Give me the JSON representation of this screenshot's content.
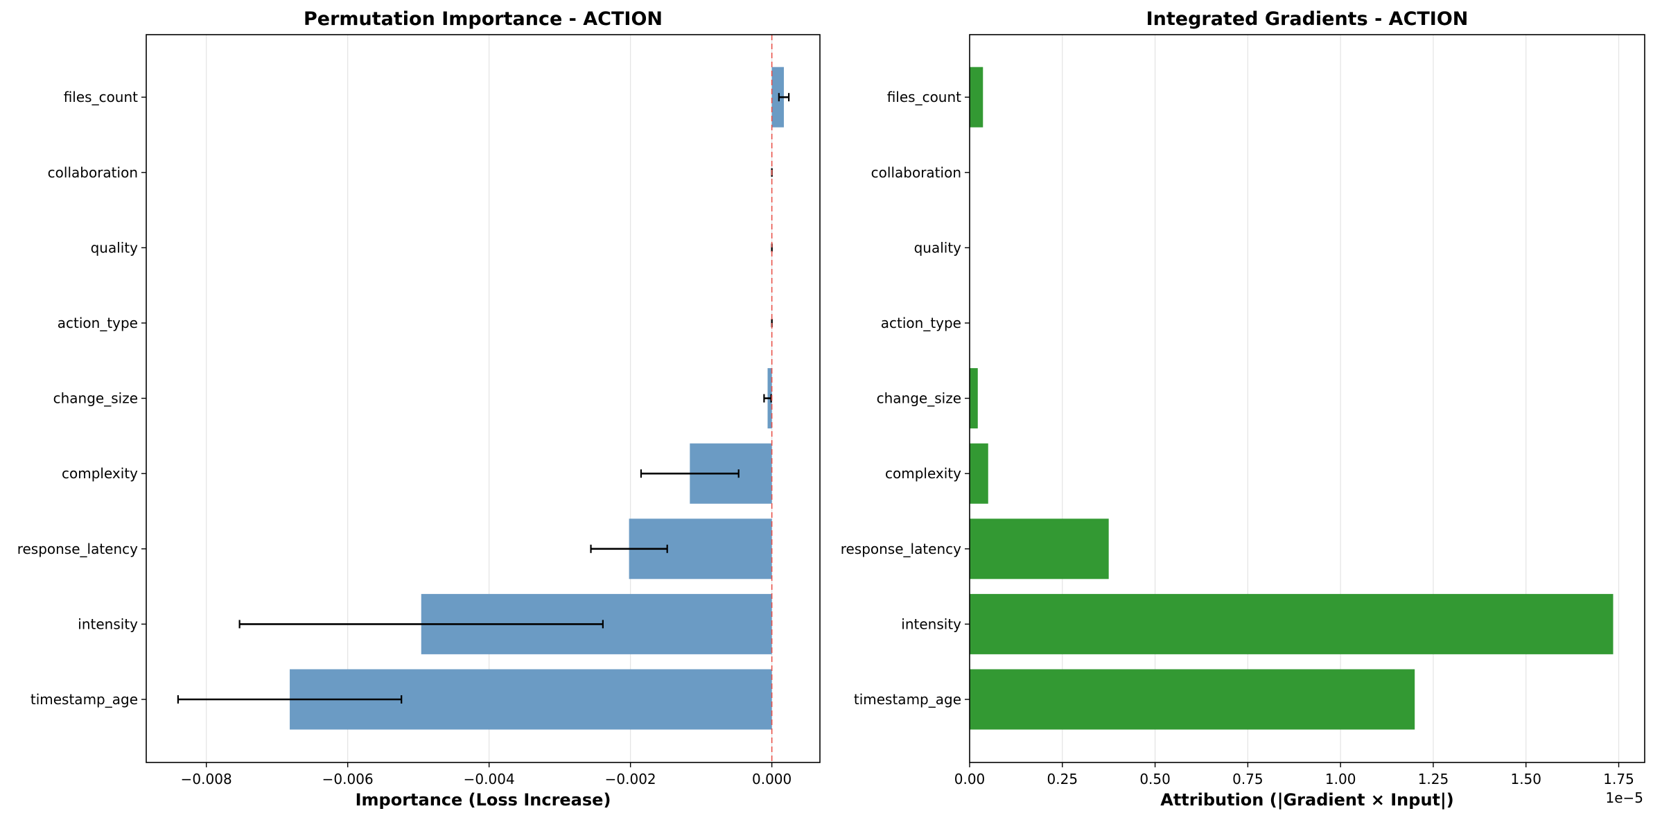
{
  "chart_data": [
    {
      "type": "bar",
      "orientation": "horizontal",
      "title": "Permutation Importance - ACTION",
      "xlabel": "Importance (Loss Increase)",
      "categories": [
        "timestamp_age",
        "intensity",
        "response_latency",
        "complexity",
        "change_size",
        "action_type",
        "quality",
        "collaboration",
        "files_count"
      ],
      "values": [
        -0.00682,
        -0.00496,
        -0.00202,
        -0.00116,
        -6e-05,
        0.0,
        0.0,
        0.0,
        0.00017
      ],
      "errors": [
        0.00158,
        0.00257,
        0.00054,
        0.00069,
        5e-05,
        0.0,
        0.0,
        0.0,
        7e-05
      ],
      "xlim": [
        -0.00885,
        0.00068
      ],
      "xticks": [
        -0.008,
        -0.006,
        -0.004,
        -0.002,
        0.0
      ],
      "xtick_labels": [
        "−0.008",
        "−0.006",
        "−0.004",
        "−0.002",
        "0.000"
      ],
      "grid": "x",
      "bar_color": "#6b9bc4",
      "zero_line_color": "#e8524a"
    },
    {
      "type": "bar",
      "orientation": "horizontal",
      "title": "Integrated Gradients - ACTION",
      "xlabel": "Attribution (|Gradient × Input|)",
      "categories": [
        "timestamp_age",
        "intensity",
        "response_latency",
        "complexity",
        "change_size",
        "action_type",
        "quality",
        "collaboration",
        "files_count"
      ],
      "values": [
        1.2,
        1.735,
        0.375,
        0.05,
        0.022,
        0.0,
        0.0,
        0.0,
        0.036
      ],
      "xlim": [
        0.0,
        1.82
      ],
      "xticks": [
        0.0,
        0.25,
        0.5,
        0.75,
        1.0,
        1.25,
        1.5,
        1.75
      ],
      "xtick_labels": [
        "0.00",
        "0.25",
        "0.50",
        "0.75",
        "1.00",
        "1.25",
        "1.50",
        "1.75"
      ],
      "offset_label": "1e−5",
      "grid": "x",
      "bar_color": "#339933"
    }
  ]
}
